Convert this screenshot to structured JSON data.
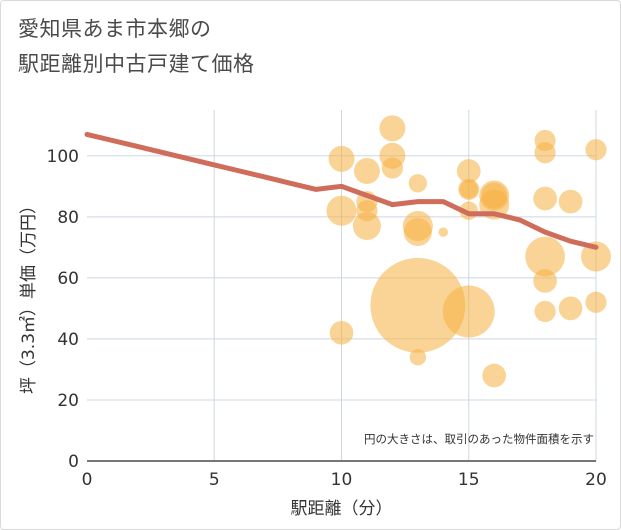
{
  "chart_data": {
    "type": "scatter",
    "title": [
      "愛知県あま市本郷の",
      "駅距離別中古戸建て価格"
    ],
    "xlabel": "駅距離（分）",
    "ylabel": "坪（3.3㎡）単価（万円）",
    "xlim": [
      0,
      20
    ],
    "ylim": [
      0,
      115
    ],
    "xticks": [
      0,
      5,
      10,
      15,
      20
    ],
    "yticks": [
      0,
      20,
      40,
      60,
      80,
      100
    ],
    "grid": true,
    "annotation": "円の大きさは、取引のあった物件面積を示す",
    "colors": {
      "bubble": "#f5b041",
      "trend": "#d06c5a",
      "grid": "#cdd8e3",
      "axis": "#4a4a4a"
    },
    "trend_line": {
      "x": [
        0,
        1,
        2,
        3,
        4,
        5,
        6,
        7,
        8,
        9,
        10,
        11,
        12,
        13,
        14,
        15,
        16,
        17,
        18,
        19,
        20
      ],
      "y": [
        107,
        105,
        103,
        101,
        99,
        97,
        95,
        93,
        91,
        89,
        90,
        87,
        84,
        85,
        85,
        81,
        81,
        79,
        75,
        72,
        70
      ]
    },
    "bubbles": [
      {
        "x": 10,
        "y": 99,
        "s": 3
      },
      {
        "x": 10,
        "y": 82,
        "s": 4
      },
      {
        "x": 10,
        "y": 42,
        "s": 2.5
      },
      {
        "x": 11,
        "y": 95,
        "s": 3
      },
      {
        "x": 11,
        "y": 85,
        "s": 2
      },
      {
        "x": 11,
        "y": 82,
        "s": 2
      },
      {
        "x": 11,
        "y": 77,
        "s": 3.5
      },
      {
        "x": 12,
        "y": 109,
        "s": 3
      },
      {
        "x": 12,
        "y": 100,
        "s": 3
      },
      {
        "x": 12,
        "y": 96,
        "s": 2
      },
      {
        "x": 13,
        "y": 91,
        "s": 1.5
      },
      {
        "x": 13,
        "y": 77,
        "s": 4
      },
      {
        "x": 13,
        "y": 75,
        "s": 3.5
      },
      {
        "x": 13,
        "y": 51,
        "s": 40
      },
      {
        "x": 13,
        "y": 34,
        "s": 1.2
      },
      {
        "x": 14,
        "y": 75,
        "s": 0.4
      },
      {
        "x": 15,
        "y": 95,
        "s": 2.5
      },
      {
        "x": 15,
        "y": 89,
        "s": 2
      },
      {
        "x": 15,
        "y": 89,
        "s": 1.5
      },
      {
        "x": 15,
        "y": 82,
        "s": 1.5
      },
      {
        "x": 15,
        "y": 49,
        "s": 12
      },
      {
        "x": 16,
        "y": 87,
        "s": 4
      },
      {
        "x": 16,
        "y": 87,
        "s": 3
      },
      {
        "x": 16,
        "y": 84,
        "s": 4
      },
      {
        "x": 16,
        "y": 28,
        "s": 2.5
      },
      {
        "x": 18,
        "y": 105,
        "s": 2
      },
      {
        "x": 18,
        "y": 101,
        "s": 2
      },
      {
        "x": 18,
        "y": 86,
        "s": 2.5
      },
      {
        "x": 18,
        "y": 67,
        "s": 7
      },
      {
        "x": 18,
        "y": 59,
        "s": 2.5
      },
      {
        "x": 18,
        "y": 49,
        "s": 2
      },
      {
        "x": 19,
        "y": 85,
        "s": 2.5
      },
      {
        "x": 19,
        "y": 50,
        "s": 2.5
      },
      {
        "x": 20,
        "y": 102,
        "s": 2
      },
      {
        "x": 20,
        "y": 67,
        "s": 4
      },
      {
        "x": 20,
        "y": 52,
        "s": 2
      }
    ]
  }
}
